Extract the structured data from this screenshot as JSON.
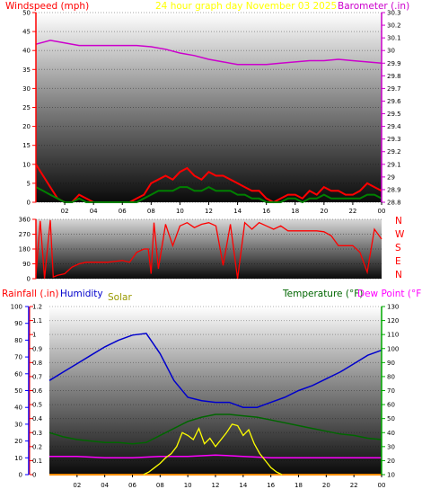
{
  "header": {
    "windspeed": "Windspeed (mph)",
    "title": "24 hour graph day   November 03 2025",
    "barometer": "Barometer (.in)"
  },
  "wind_dir_labels": [
    "N",
    "W",
    "S",
    "E",
    "N"
  ],
  "bottom_header": {
    "rainfall": "Rainfall (.in)",
    "humidity": "Humidity",
    "solar": "Solar",
    "temperature": "Temperature (°F)",
    "dewpoint": "Dew Point (°F)"
  },
  "colors": {
    "windspeed": "#ff0000",
    "title": "#ffff00",
    "barometer": "#cc00cc",
    "direction": "#ff0000",
    "rainfall": "#ff0000",
    "humidity": "#0000cc",
    "solar": "#999900",
    "temperature": "#006600",
    "dewpoint": "#ff00ff",
    "axis_left": "#ff0000",
    "axis_right_top": "#cc00cc",
    "axis_left_bottom": "#0000ff",
    "axis_right_bottom": "#00aa00"
  },
  "chart_data": [
    {
      "type": "line",
      "x_ticks": [
        "02",
        "04",
        "06",
        "08",
        "10",
        "12",
        "14",
        "16",
        "18",
        "20",
        "22",
        "00"
      ],
      "y_left_ticks": [
        0,
        5,
        10,
        15,
        20,
        25,
        30,
        35,
        40,
        45,
        50
      ],
      "y_right_ticks": [
        "28.8",
        "28.9",
        "29",
        "29.1",
        "29.2",
        "29.3",
        "29.4",
        "29.5",
        "29.6",
        "29.7",
        "29.8",
        "29.9",
        "30",
        "30.1",
        "30.2",
        "30.3"
      ],
      "ylim_left": [
        0,
        50
      ],
      "ylim_right": [
        28.8,
        30.3
      ],
      "x_range_hours": [
        0,
        24
      ],
      "series": [
        {
          "axis": "right",
          "x": [
            0,
            1,
            2,
            3,
            4,
            5,
            6,
            7,
            8,
            9,
            10,
            11,
            12,
            13,
            14,
            15,
            16,
            17,
            18,
            19,
            20,
            21,
            22,
            23,
            24
          ],
          "values": [
            30.05,
            30.08,
            30.06,
            30.04,
            30.04,
            30.04,
            30.04,
            30.04,
            30.03,
            30.01,
            29.98,
            29.96,
            29.93,
            29.91,
            29.89,
            29.89,
            29.89,
            29.9,
            29.91,
            29.92,
            29.92,
            29.93,
            29.92,
            29.91,
            29.9
          ]
        },
        {
          "axis": "left",
          "x": [
            0,
            0.5,
            1,
            1.5,
            2,
            2.5,
            3,
            3.5,
            4,
            4.5,
            5,
            5.5,
            6,
            6.5,
            7,
            7.5,
            8,
            8.5,
            9,
            9.5,
            10,
            10.5,
            11,
            11.5,
            12,
            12.5,
            13,
            13.5,
            14,
            14.5,
            15,
            15.5,
            16,
            16.5,
            17,
            17.5,
            18,
            18.5,
            19,
            19.5,
            20,
            20.5,
            21,
            21.5,
            22,
            22.5,
            23,
            23.5,
            24
          ],
          "values": [
            10,
            7,
            4,
            1,
            0,
            0,
            2,
            1,
            0,
            0,
            0,
            0,
            0,
            0,
            1,
            2,
            5,
            6,
            7,
            6,
            8,
            9,
            7,
            6,
            8,
            7,
            7,
            6,
            5,
            4,
            3,
            3,
            1,
            0,
            1,
            2,
            2,
            1,
            3,
            2,
            4,
            3,
            3,
            2,
            2,
            3,
            5,
            4,
            3
          ]
        },
        {
          "axis": "left",
          "x": [
            0,
            0.5,
            1,
            1.5,
            2,
            2.5,
            3,
            3.5,
            4,
            4.5,
            5,
            5.5,
            6,
            6.5,
            7,
            7.5,
            8,
            8.5,
            9,
            9.5,
            10,
            10.5,
            11,
            11.5,
            12,
            12.5,
            13,
            13.5,
            14,
            14.5,
            15,
            15.5,
            16,
            16.5,
            17,
            17.5,
            18,
            18.5,
            19,
            19.5,
            20,
            20.5,
            21,
            21.5,
            22,
            22.5,
            23,
            23.5,
            24
          ],
          "values": [
            4,
            3,
            2,
            1,
            0,
            0,
            1,
            0,
            0,
            0,
            0,
            0,
            0,
            0,
            0,
            1,
            2,
            3,
            3,
            3,
            4,
            4,
            3,
            3,
            4,
            3,
            3,
            3,
            2,
            2,
            1,
            1,
            0,
            0,
            0,
            1,
            1,
            0,
            1,
            1,
            2,
            1,
            1,
            1,
            1,
            1,
            2,
            2,
            1
          ]
        }
      ]
    },
    {
      "type": "line",
      "y_left_ticks": [
        0,
        90,
        180,
        270,
        360
      ],
      "ylim": [
        0,
        360
      ],
      "series": [
        {
          "x": [
            0,
            0.3,
            0.6,
            1,
            1.2,
            1.5,
            2,
            2.5,
            3,
            3.5,
            4,
            5,
            6,
            6.5,
            7,
            7.5,
            7.8,
            8,
            8.2,
            8.5,
            9,
            9.5,
            10,
            10.5,
            11,
            11.5,
            12,
            12.5,
            13,
            13.5,
            14,
            14.5,
            15,
            15.5,
            16,
            16.5,
            17,
            17.5,
            18,
            18.5,
            19,
            19.5,
            20,
            20.5,
            21,
            21.5,
            22,
            22.5,
            23,
            23.5,
            24
          ],
          "values": [
            20,
            350,
            0,
            355,
            10,
            20,
            30,
            70,
            90,
            100,
            100,
            100,
            110,
            100,
            160,
            180,
            180,
            30,
            340,
            60,
            330,
            200,
            320,
            340,
            310,
            330,
            340,
            320,
            80,
            330,
            0,
            340,
            300,
            340,
            320,
            300,
            320,
            290,
            290,
            290,
            290,
            290,
            285,
            260,
            200,
            200,
            200,
            160,
            40,
            300,
            240
          ]
        }
      ]
    },
    {
      "type": "line",
      "x_ticks": [
        "02",
        "04",
        "06",
        "08",
        "10",
        "12",
        "14",
        "16",
        "18",
        "20",
        "22",
        "00"
      ],
      "rain_ticks": [
        0,
        0.1,
        0.2,
        0.3,
        0.4,
        0.5,
        0.6,
        0.7,
        0.8,
        0.9,
        1,
        1.1,
        1.2
      ],
      "humidity_ticks": [
        0,
        10,
        20,
        30,
        40,
        50,
        60,
        70,
        80,
        90,
        100
      ],
      "temp_ticks": [
        10,
        20,
        30,
        40,
        50,
        60,
        70,
        80,
        90,
        100,
        110,
        120,
        130
      ],
      "ylim_rain": [
        0,
        1.2
      ],
      "ylim_temp": [
        10,
        130
      ],
      "series": [
        {
          "name": "Humidity",
          "axis": "humidity",
          "x": [
            0,
            1,
            2,
            3,
            4,
            5,
            6,
            7,
            8,
            9,
            10,
            11,
            12,
            13,
            14,
            15,
            16,
            17,
            18,
            19,
            20,
            21,
            22,
            23,
            24
          ],
          "values": [
            56,
            61,
            66,
            71,
            76,
            80,
            83,
            84,
            72,
            56,
            46,
            44,
            43,
            43,
            40,
            40,
            43,
            46,
            50,
            53,
            57,
            61,
            66,
            71,
            74
          ]
        },
        {
          "name": "Temperature (°F)",
          "axis": "temp",
          "x": [
            0,
            1,
            2,
            3,
            4,
            5,
            6,
            7,
            8,
            9,
            10,
            11,
            12,
            13,
            14,
            15,
            16,
            17,
            18,
            19,
            20,
            21,
            22,
            23,
            24
          ],
          "values": [
            40,
            37,
            35,
            34,
            33,
            33,
            32,
            33,
            38,
            43,
            48,
            51,
            53,
            53,
            52,
            51,
            49,
            47,
            45,
            43,
            41,
            39,
            38,
            36,
            35
          ]
        },
        {
          "name": "Dew Point (°F)",
          "axis": "temp",
          "x": [
            0,
            2,
            4,
            6,
            8,
            10,
            12,
            14,
            16,
            18,
            20,
            22,
            24
          ],
          "values": [
            23,
            23,
            22,
            22,
            23,
            23,
            24,
            23,
            22,
            22,
            22,
            22,
            22
          ]
        },
        {
          "name": "Solar",
          "axis": "rain",
          "x": [
            6.8,
            7.2,
            7.6,
            8,
            8.4,
            8.8,
            9.2,
            9.6,
            10,
            10.4,
            10.8,
            11.2,
            11.6,
            12,
            12.4,
            12.8,
            13.2,
            13.6,
            14,
            14.4,
            14.8,
            15.2,
            15.6,
            16,
            16.4,
            16.8
          ],
          "values": [
            0,
            0.02,
            0.05,
            0.08,
            0.12,
            0.15,
            0.2,
            0.3,
            0.28,
            0.25,
            0.33,
            0.22,
            0.26,
            0.2,
            0.25,
            0.3,
            0.36,
            0.35,
            0.28,
            0.32,
            0.22,
            0.15,
            0.1,
            0.05,
            0.02,
            0
          ]
        },
        {
          "name": "Rainfall (.in)",
          "axis": "rain",
          "x": [
            0,
            24
          ],
          "values": [
            0,
            0
          ]
        }
      ]
    }
  ]
}
